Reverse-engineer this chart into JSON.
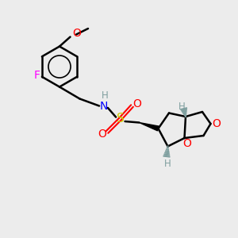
{
  "background_color": "#ececec",
  "atom_colors": {
    "C": "#000000",
    "N": "#0000ff",
    "O": "#ff0000",
    "S": "#cccc00",
    "F": "#ff00ff",
    "H": "#7f9f9f"
  },
  "figsize": [
    3.0,
    3.0
  ],
  "dpi": 100
}
